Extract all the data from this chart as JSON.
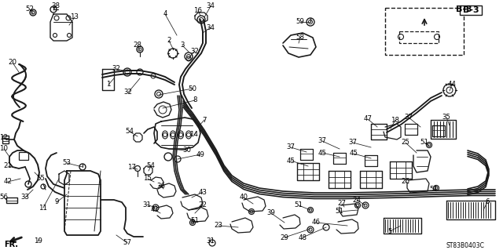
{
  "bg_color": "#ffffff",
  "line_color": "#1a1a1a",
  "label_color": "#000000",
  "diagram_code": "ST83B0403C",
  "fig_width": 6.4,
  "fig_height": 3.19,
  "dpi": 100
}
